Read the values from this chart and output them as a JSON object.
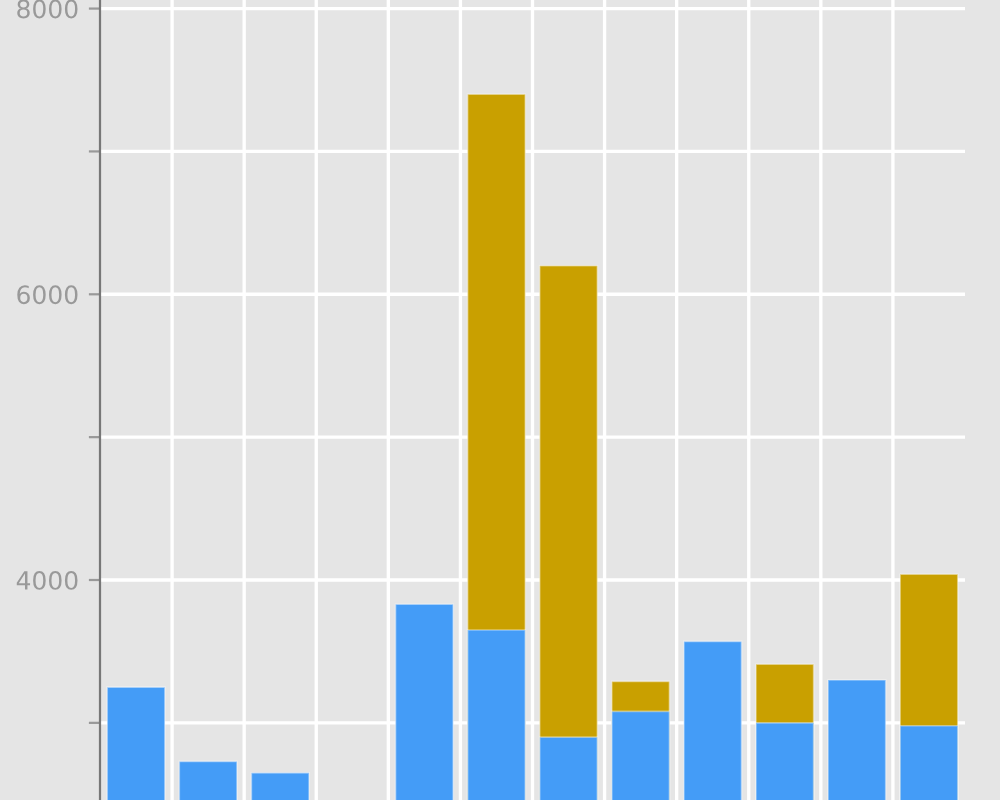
{
  "chart_data": {
    "type": "bar",
    "categories": [
      null,
      null,
      null,
      null,
      null,
      null,
      null,
      null,
      null,
      null,
      null,
      null
    ],
    "series": [
      {
        "color": "#c9a000",
        "values": [
          null,
          null,
          null,
          null,
          null,
          7400,
          6200,
          3290,
          null,
          3410,
          null,
          4040
        ]
      },
      {
        "color": "#449cf7",
        "values": [
          3250,
          2730,
          2650,
          null,
          3830,
          3650,
          2900,
          3080,
          3570,
          3000,
          3300,
          2980
        ]
      }
    ],
    "ylim": [
      2460,
      8060
    ],
    "yticks": [
      {
        "value": 3000,
        "label": null
      },
      4000,
      {
        "value": 5000,
        "label": null
      },
      6000,
      {
        "value": 7000,
        "label": null
      },
      8000
    ],
    "grid": true,
    "tick_labels": "y"
  }
}
